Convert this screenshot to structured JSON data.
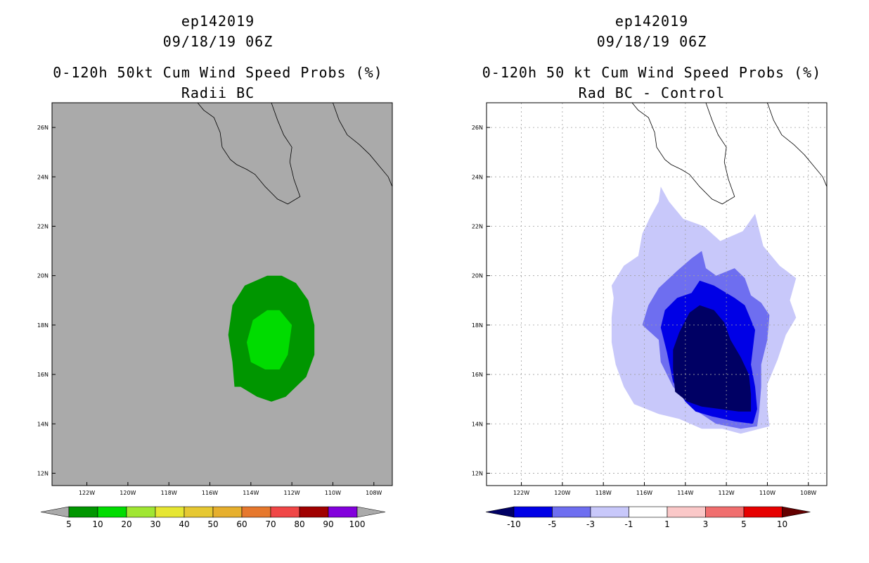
{
  "left_panel": {
    "title_line1": "ep142019",
    "title_line2": "09/18/19 06Z",
    "title_line3": "0-120h 50kt Cum Wind Speed Probs (%)",
    "title_line4": "Radii BC"
  },
  "right_panel": {
    "title_line1": "ep142019",
    "title_line2": "09/18/19 06Z",
    "title_line3": "0-120h 50 kt Cum Wind Speed Probs (%)",
    "title_line4": "Rad BC - Control"
  },
  "chart_data": [
    {
      "type": "heatmap",
      "title": "0-120h 50kt Cum Wind Speed Probs (%) — Radii BC",
      "lon_range": [
        -123.7,
        -107.1
      ],
      "lat_range": [
        11.5,
        27.0
      ],
      "lon_ticks": [
        "122W",
        "120W",
        "118W",
        "116W",
        "114W",
        "112W",
        "110W",
        "108W"
      ],
      "lat_ticks": [
        "12N",
        "14N",
        "16N",
        "18N",
        "20N",
        "22N",
        "24N",
        "26N"
      ],
      "grid": false,
      "background_color": "#aaaaaa",
      "colorbar": {
        "labels": [
          "5",
          "10",
          "20",
          "30",
          "40",
          "50",
          "60",
          "70",
          "80",
          "90",
          "100"
        ],
        "colors": [
          "#009600",
          "#00dc00",
          "#a0e632",
          "#e6e632",
          "#e6c832",
          "#e6af2d",
          "#e6782d",
          "#f04646",
          "#a00000",
          "#8200dc"
        ],
        "low_end_color": "#aaaaaa",
        "high_end_color": "#aaaaaa"
      },
      "contours": [
        {
          "level": "5-10",
          "color": "#009600",
          "polygon": [
            [
              -114.8,
              15.5
            ],
            [
              -114.9,
              16.5
            ],
            [
              -115.1,
              17.6
            ],
            [
              -114.9,
              18.8
            ],
            [
              -114.3,
              19.6
            ],
            [
              -113.2,
              20.0
            ],
            [
              -112.5,
              20.0
            ],
            [
              -111.8,
              19.7
            ],
            [
              -111.2,
              19.0
            ],
            [
              -110.9,
              18.0
            ],
            [
              -110.9,
              16.8
            ],
            [
              -111.3,
              15.9
            ],
            [
              -112.3,
              15.1
            ],
            [
              -113.0,
              14.9
            ],
            [
              -113.7,
              15.1
            ],
            [
              -114.5,
              15.5
            ]
          ]
        },
        {
          "level": "10-20",
          "color": "#00dc00",
          "polygon": [
            [
              -114.0,
              16.5
            ],
            [
              -114.2,
              17.3
            ],
            [
              -113.9,
              18.2
            ],
            [
              -113.2,
              18.6
            ],
            [
              -112.6,
              18.6
            ],
            [
              -112.0,
              18.0
            ],
            [
              -112.2,
              16.8
            ],
            [
              -112.6,
              16.2
            ],
            [
              -113.3,
              16.2
            ]
          ]
        }
      ]
    },
    {
      "type": "heatmap",
      "title": "0-120h 50 kt Cum Wind Speed Probs (%) — Rad BC - Control",
      "lon_range": [
        -123.7,
        -107.1
      ],
      "lat_range": [
        11.5,
        27.0
      ],
      "lon_ticks": [
        "122W",
        "120W",
        "118W",
        "116W",
        "114W",
        "112W",
        "110W",
        "108W"
      ],
      "lat_ticks": [
        "12N",
        "14N",
        "16N",
        "18N",
        "20N",
        "22N",
        "24N",
        "26N"
      ],
      "grid": true,
      "background_color": "#ffffff",
      "colorbar": {
        "labels": [
          "-10",
          "-5",
          "-3",
          "-1",
          "1",
          "3",
          "5",
          "10"
        ],
        "colors": [
          "#0000e6",
          "#6e6ef0",
          "#c8c8fa",
          "#ffffff",
          "#fac8c8",
          "#f06e6e",
          "#e60000"
        ],
        "low_end_color": "#000064",
        "high_end_color": "#640000"
      },
      "contours": [
        {
          "level": "-3 to -1",
          "color": "#c8c8fa",
          "polygon": [
            [
              -116.5,
              14.8
            ],
            [
              -117.0,
              15.5
            ],
            [
              -117.4,
              16.4
            ],
            [
              -117.6,
              17.3
            ],
            [
              -117.6,
              18.3
            ],
            [
              -117.5,
              19.1
            ],
            [
              -117.6,
              19.6
            ],
            [
              -117.0,
              20.4
            ],
            [
              -116.3,
              20.8
            ],
            [
              -116.1,
              21.7
            ],
            [
              -115.7,
              22.4
            ],
            [
              -115.3,
              23.0
            ],
            [
              -115.2,
              23.6
            ],
            [
              -114.8,
              23.0
            ],
            [
              -114.1,
              22.3
            ],
            [
              -113.1,
              22.0
            ],
            [
              -112.3,
              21.4
            ],
            [
              -111.2,
              21.8
            ],
            [
              -110.6,
              22.5
            ],
            [
              -110.2,
              21.2
            ],
            [
              -109.4,
              20.4
            ],
            [
              -108.6,
              19.9
            ],
            [
              -108.9,
              19.0
            ],
            [
              -108.6,
              18.3
            ],
            [
              -109.1,
              17.6
            ],
            [
              -109.5,
              16.6
            ],
            [
              -110.0,
              15.6
            ],
            [
              -110.0,
              14.7
            ],
            [
              -109.9,
              13.9
            ],
            [
              -111.3,
              13.6
            ],
            [
              -112.2,
              13.8
            ],
            [
              -113.2,
              13.8
            ],
            [
              -114.3,
              14.2
            ],
            [
              -115.3,
              14.4
            ]
          ]
        },
        {
          "level": "-5 to -3",
          "color": "#6e6ef0",
          "polygon": [
            [
              -114.6,
              15.5
            ],
            [
              -115.2,
              16.5
            ],
            [
              -115.3,
              17.4
            ],
            [
              -116.1,
              18.0
            ],
            [
              -115.8,
              18.8
            ],
            [
              -115.3,
              19.5
            ],
            [
              -114.4,
              20.2
            ],
            [
              -113.7,
              20.7
            ],
            [
              -113.2,
              21.0
            ],
            [
              -113.0,
              20.3
            ],
            [
              -112.5,
              20.0
            ],
            [
              -111.6,
              20.3
            ],
            [
              -111.1,
              19.9
            ],
            [
              -110.8,
              19.2
            ],
            [
              -110.3,
              18.9
            ],
            [
              -109.9,
              18.4
            ],
            [
              -110.0,
              17.4
            ],
            [
              -110.3,
              16.4
            ],
            [
              -110.3,
              15.5
            ],
            [
              -110.4,
              14.5
            ],
            [
              -110.5,
              13.9
            ],
            [
              -111.3,
              13.8
            ],
            [
              -112.5,
              14.0
            ],
            [
              -113.4,
              14.5
            ]
          ]
        },
        {
          "level": "-10 to -5",
          "color": "#0000e6",
          "polygon": [
            [
              -114.0,
              14.9
            ],
            [
              -114.6,
              15.7
            ],
            [
              -114.9,
              16.9
            ],
            [
              -115.2,
              17.9
            ],
            [
              -115.0,
              18.6
            ],
            [
              -114.4,
              19.1
            ],
            [
              -113.7,
              19.3
            ],
            [
              -113.3,
              19.8
            ],
            [
              -112.6,
              19.6
            ],
            [
              -112.0,
              19.3
            ],
            [
              -111.6,
              19.1
            ],
            [
              -111.1,
              18.8
            ],
            [
              -110.6,
              17.8
            ],
            [
              -110.8,
              16.4
            ],
            [
              -110.6,
              15.5
            ],
            [
              -110.5,
              14.6
            ],
            [
              -110.7,
              14.0
            ],
            [
              -111.6,
              14.1
            ],
            [
              -112.7,
              14.3
            ],
            [
              -113.5,
              14.5
            ]
          ]
        },
        {
          "level": "< -10",
          "color": "#000064",
          "polygon": [
            [
              -114.5,
              15.3
            ],
            [
              -114.6,
              16.2
            ],
            [
              -114.6,
              17.0
            ],
            [
              -114.3,
              17.7
            ],
            [
              -113.8,
              18.5
            ],
            [
              -113.3,
              18.8
            ],
            [
              -112.6,
              18.6
            ],
            [
              -112.1,
              18.1
            ],
            [
              -111.8,
              17.4
            ],
            [
              -111.3,
              16.7
            ],
            [
              -110.9,
              16.0
            ],
            [
              -110.8,
              15.2
            ],
            [
              -110.8,
              14.5
            ],
            [
              -111.4,
              14.5
            ],
            [
              -112.3,
              14.6
            ],
            [
              -113.2,
              14.7
            ],
            [
              -113.9,
              14.9
            ]
          ]
        }
      ]
    }
  ]
}
